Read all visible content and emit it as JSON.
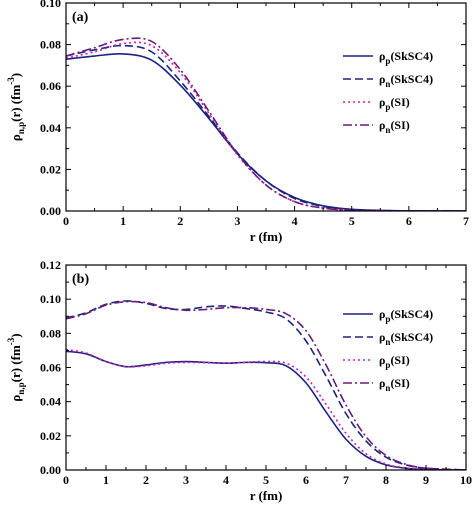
{
  "chart_data": [
    {
      "type": "line",
      "panel_label": "(a)",
      "xlabel": "r (fm)",
      "ylabel": "ρn,p(r) (fm-3)",
      "ylabel_parts": {
        "base": "ρ",
        "sub": "n,p",
        "main": "(r) (fm",
        "sup": "-3",
        "close": ")"
      },
      "xlim": [
        0,
        7
      ],
      "ylim": [
        0,
        0.1
      ],
      "x_ticks": [
        "0",
        "1",
        "2",
        "3",
        "4",
        "5",
        "6",
        "7"
      ],
      "y_ticks": [
        "0.00",
        "0.02",
        "0.04",
        "0.06",
        "0.08",
        "0.10"
      ],
      "legend_position": "top-right",
      "series": [
        {
          "name": "ρp(SkSC4)",
          "name_base": "ρ",
          "name_sub": "p",
          "name_rest": "(SkSC4)",
          "color": "#1a237e",
          "dash": "solid",
          "x": [
            0,
            0.5,
            1.0,
            1.5,
            2.0,
            2.5,
            3.0,
            3.5,
            4.0,
            4.5,
            5.0,
            5.5,
            6.0,
            7.0
          ],
          "y": [
            0.073,
            0.0745,
            0.0755,
            0.0725,
            0.0605,
            0.0445,
            0.0275,
            0.0145,
            0.0065,
            0.0025,
            0.0008,
            0.0003,
            0.0001,
            0.0
          ]
        },
        {
          "name": "ρn(SkSC4)",
          "name_base": "ρ",
          "name_sub": "n",
          "name_rest": "(SkSC4)",
          "color": "#1a237e",
          "dash": "8,4",
          "x": [
            0,
            0.5,
            1.0,
            1.5,
            2.0,
            2.5,
            3.0,
            3.5,
            4.0,
            4.5,
            5.0,
            5.5,
            6.0,
            7.0
          ],
          "y": [
            0.0745,
            0.0775,
            0.0795,
            0.0765,
            0.0625,
            0.0455,
            0.028,
            0.0145,
            0.006,
            0.0022,
            0.0007,
            0.0002,
            0.0001,
            0.0
          ]
        },
        {
          "name": "ρp(SI)",
          "name_base": "ρ",
          "name_sub": "p",
          "name_rest": "(SI)",
          "color": "#cc1fb0",
          "dash": "2,3",
          "x": [
            0,
            0.5,
            1.0,
            1.5,
            2.0,
            2.5,
            3.0,
            3.5,
            4.0,
            4.5,
            5.0,
            5.5,
            6.0,
            7.0
          ],
          "y": [
            0.0735,
            0.0765,
            0.0805,
            0.0795,
            0.0665,
            0.047,
            0.027,
            0.0125,
            0.0045,
            0.0014,
            0.0004,
            0.0001,
            0.0,
            0.0
          ]
        },
        {
          "name": "ρn(SI)",
          "name_base": "ρ",
          "name_sub": "n",
          "name_rest": "(SI)",
          "color": "#6a1b7a",
          "dash": "9,3,2,3",
          "x": [
            0,
            0.5,
            1.0,
            1.5,
            2.0,
            2.5,
            3.0,
            3.5,
            4.0,
            4.5,
            5.0,
            5.5,
            6.0,
            7.0
          ],
          "y": [
            0.0745,
            0.0785,
            0.0825,
            0.0815,
            0.068,
            0.048,
            0.0275,
            0.0125,
            0.0045,
            0.0014,
            0.0004,
            0.0001,
            0.0,
            0.0
          ]
        }
      ]
    },
    {
      "type": "line",
      "panel_label": "(b)",
      "xlabel": "r (fm)",
      "ylabel": "ρn,p(r) (fm-3)",
      "ylabel_parts": {
        "base": "ρ",
        "sub": "n,p",
        "main": "(r) (fm",
        "sup": "-3",
        "close": ")"
      },
      "xlim": [
        0,
        10
      ],
      "ylim": [
        0,
        0.12
      ],
      "x_ticks": [
        "0",
        "1",
        "2",
        "3",
        "4",
        "5",
        "6",
        "7",
        "8",
        "9",
        "10"
      ],
      "y_ticks": [
        "0.00",
        "0.02",
        "0.04",
        "0.06",
        "0.08",
        "0.10",
        "0.12"
      ],
      "legend_position": "right",
      "series": [
        {
          "name": "ρp(SkSC4)",
          "name_base": "ρ",
          "name_sub": "p",
          "name_rest": "(SkSC4)",
          "color": "#1a237e",
          "dash": "solid",
          "x": [
            0,
            0.5,
            1.0,
            1.5,
            2.0,
            2.5,
            3.0,
            3.5,
            4.0,
            4.5,
            5.0,
            5.5,
            6.0,
            6.5,
            7.0,
            7.5,
            8.0,
            8.5,
            9.0,
            10.0
          ],
          "y": [
            0.0695,
            0.068,
            0.0635,
            0.0605,
            0.0615,
            0.063,
            0.0635,
            0.063,
            0.0625,
            0.063,
            0.0628,
            0.061,
            0.051,
            0.034,
            0.018,
            0.008,
            0.003,
            0.001,
            0.0003,
            0.0
          ]
        },
        {
          "name": "ρn(SkSC4)",
          "name_base": "ρ",
          "name_sub": "n",
          "name_rest": "(SkSC4)",
          "color": "#1a237e",
          "dash": "8,4",
          "x": [
            0,
            0.5,
            1.0,
            1.5,
            2.0,
            2.5,
            3.0,
            3.5,
            4.0,
            4.5,
            5.0,
            5.5,
            6.0,
            6.5,
            7.0,
            7.5,
            8.0,
            8.5,
            9.0,
            10.0
          ],
          "y": [
            0.089,
            0.092,
            0.097,
            0.099,
            0.0975,
            0.0945,
            0.094,
            0.0955,
            0.096,
            0.0945,
            0.0925,
            0.0885,
            0.0755,
            0.055,
            0.033,
            0.017,
            0.0075,
            0.003,
            0.001,
            0.0
          ]
        },
        {
          "name": "ρp(SI)",
          "name_base": "ρ",
          "name_sub": "p",
          "name_rest": "(SI)",
          "color": "#cc1fb0",
          "dash": "2,3",
          "x": [
            0,
            0.5,
            1.0,
            1.5,
            2.0,
            2.5,
            3.0,
            3.5,
            4.0,
            4.5,
            5.0,
            5.5,
            6.0,
            6.5,
            7.0,
            7.5,
            8.0,
            8.5,
            9.0,
            10.0
          ],
          "y": [
            0.0705,
            0.0685,
            0.0635,
            0.0605,
            0.061,
            0.0625,
            0.063,
            0.0628,
            0.0625,
            0.063,
            0.0635,
            0.0625,
            0.0545,
            0.0385,
            0.0215,
            0.0095,
            0.0035,
            0.0012,
            0.0003,
            0.0
          ]
        },
        {
          "name": "ρn(SI)",
          "name_base": "ρ",
          "name_sub": "n",
          "name_rest": "(SI)",
          "color": "#6a1b7a",
          "dash": "9,3,2,3",
          "x": [
            0,
            0.5,
            1.0,
            1.5,
            2.0,
            2.5,
            3.0,
            3.5,
            4.0,
            4.5,
            5.0,
            5.5,
            6.0,
            6.5,
            7.0,
            7.5,
            8.0,
            8.5,
            9.0,
            10.0
          ],
          "y": [
            0.0885,
            0.0915,
            0.0965,
            0.0985,
            0.098,
            0.095,
            0.0935,
            0.094,
            0.095,
            0.095,
            0.094,
            0.0915,
            0.0815,
            0.0615,
            0.038,
            0.0195,
            0.0085,
            0.0033,
            0.0011,
            0.0
          ]
        }
      ]
    }
  ]
}
